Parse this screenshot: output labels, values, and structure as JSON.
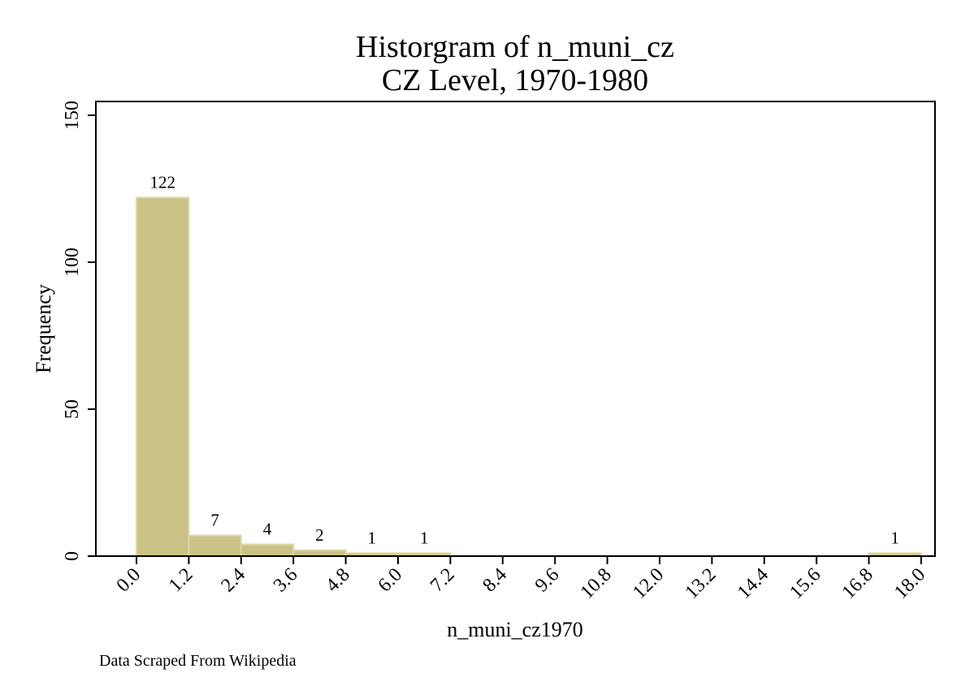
{
  "chart_data": {
    "type": "bar",
    "title": [
      "Historgram of n_muni_cz",
      "CZ Level, 1970-1980"
    ],
    "xlabel": "n_muni_cz1970",
    "ylabel": "Frequency",
    "note": "Data Scraped From Wikipedia",
    "xlim": [
      0,
      18
    ],
    "ylim": [
      0,
      150
    ],
    "x_ticks": [
      "0.0",
      "1.2",
      "2.4",
      "3.6",
      "4.8",
      "6.0",
      "7.2",
      "8.4",
      "9.6",
      "10.8",
      "12.0",
      "13.2",
      "14.4",
      "15.6",
      "16.8",
      "18.0"
    ],
    "y_ticks": [
      "0",
      "50",
      "100",
      "150"
    ],
    "bins": [
      {
        "x0": 0.0,
        "x1": 1.2,
        "value": 122,
        "label": "122"
      },
      {
        "x0": 1.2,
        "x1": 2.4,
        "value": 7,
        "label": "7"
      },
      {
        "x0": 2.4,
        "x1": 3.6,
        "value": 4,
        "label": "4"
      },
      {
        "x0": 3.6,
        "x1": 4.8,
        "value": 2,
        "label": "2"
      },
      {
        "x0": 4.8,
        "x1": 6.0,
        "value": 1,
        "label": "1"
      },
      {
        "x0": 6.0,
        "x1": 7.2,
        "value": 1,
        "label": "1"
      },
      {
        "x0": 16.8,
        "x1": 18.0,
        "value": 1,
        "label": "1"
      }
    ],
    "bar_color": "#CBC386",
    "bar_edge_color": "#DDD7A8",
    "grid": false
  }
}
